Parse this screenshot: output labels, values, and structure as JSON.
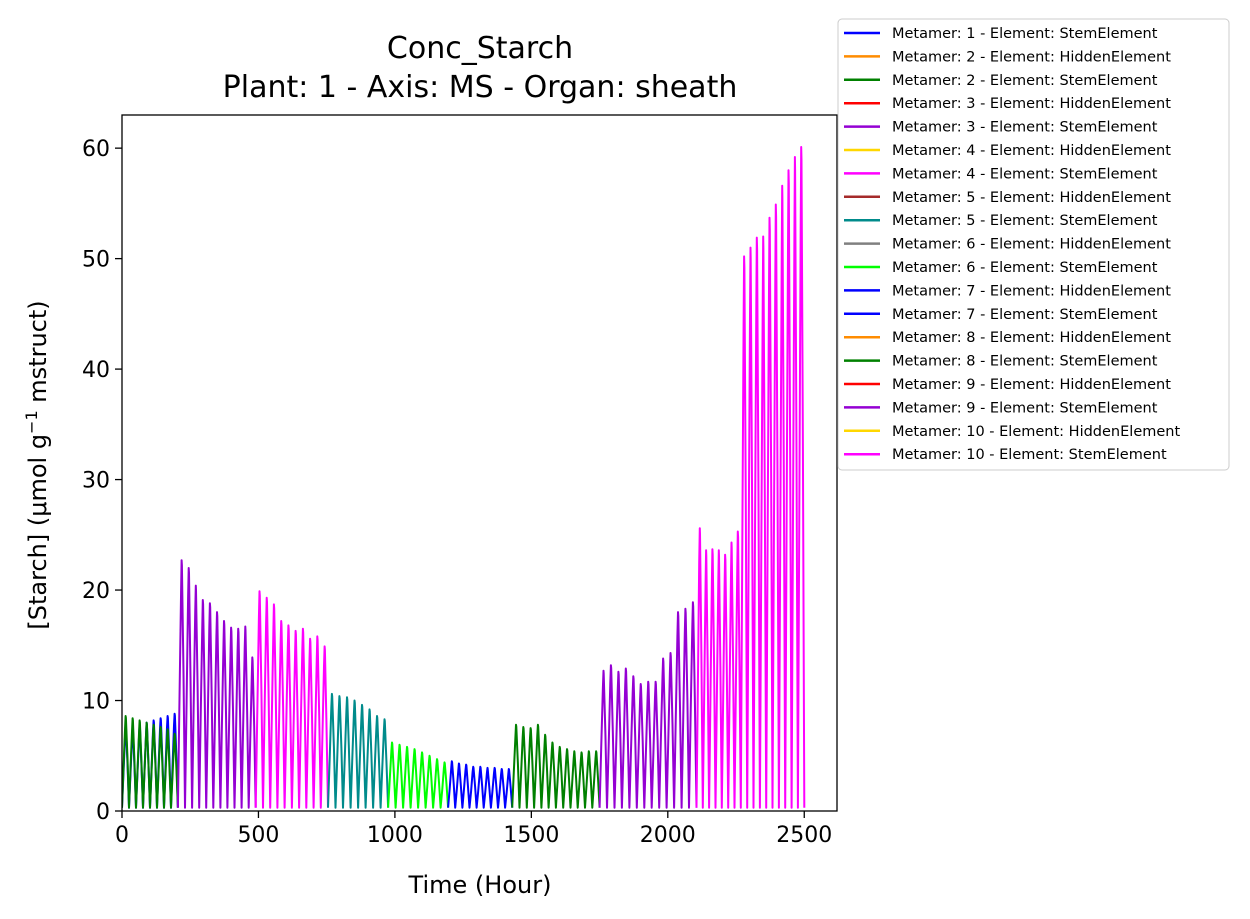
{
  "chart_data": {
    "type": "line",
    "title": "Conc_Starch",
    "subtitle": "Plant: 1 - Axis: MS - Organ: sheath",
    "xlabel": "Time (Hour)",
    "ylabel_prefix": "[Starch] (μmol g",
    "ylabel_sup": "−1",
    "ylabel_suffix": " mstruct)",
    "xlim": [
      0,
      2620
    ],
    "ylim": [
      0,
      63
    ],
    "xticks": [
      0,
      500,
      1000,
      1500,
      2000,
      2500
    ],
    "yticks": [
      0,
      10,
      20,
      30,
      40,
      50,
      60
    ],
    "legend_position": "outside-top-right",
    "grid": false,
    "series": [
      {
        "name": "Metamer: 1 - Element: StemElement",
        "color": "#0000ff",
        "t0": 0,
        "t1": 205,
        "peaks": [
          7.8,
          7.6,
          7.8,
          8.0,
          8.2,
          8.4,
          8.6,
          8.8
        ]
      },
      {
        "name": "Metamer: 2 - Element: HiddenElement",
        "color": "#ff8c00",
        "t0": 0,
        "t1": 0,
        "peaks": []
      },
      {
        "name": "Metamer: 2 - Element: StemElement",
        "color": "#008000",
        "t0": 0,
        "t1": 205,
        "peaks": [
          8.6,
          8.4,
          8.2,
          8.0,
          7.8,
          7.6,
          7.4,
          7.0
        ]
      },
      {
        "name": "Metamer: 3 - Element: HiddenElement",
        "color": "#ff0000",
        "t0": 0,
        "t1": 0,
        "peaks": []
      },
      {
        "name": "Metamer: 3 - Element: StemElement",
        "color": "#9400d3",
        "t0": 205,
        "t1": 490,
        "peaks": [
          22.7,
          22.0,
          20.4,
          19.1,
          18.8,
          18.0,
          17.2,
          16.6,
          16.5,
          16.7,
          13.9
        ]
      },
      {
        "name": "Metamer: 4 - Element: HiddenElement",
        "color": "#ffd700",
        "t0": 0,
        "t1": 0,
        "peaks": []
      },
      {
        "name": "Metamer: 4 - Element: StemElement",
        "color": "#ff00ff",
        "t0": 490,
        "t1": 755,
        "peaks": [
          19.9,
          19.3,
          18.7,
          17.2,
          16.8,
          16.3,
          16.5,
          15.6,
          15.8,
          14.9
        ]
      },
      {
        "name": "Metamer: 5 - Element: HiddenElement",
        "color": "#a52a2a",
        "t0": 0,
        "t1": 0,
        "peaks": []
      },
      {
        "name": "Metamer: 5 - Element: StemElement",
        "color": "#008b8b",
        "t0": 755,
        "t1": 975,
        "peaks": [
          10.6,
          10.4,
          10.3,
          10.0,
          9.6,
          9.2,
          8.6,
          8.3
        ]
      },
      {
        "name": "Metamer: 6 - Element: HiddenElement",
        "color": "#808080",
        "t0": 0,
        "t1": 0,
        "peaks": []
      },
      {
        "name": "Metamer: 6 - Element: StemElement",
        "color": "#00ff00",
        "t0": 975,
        "t1": 1195,
        "peaks": [
          6.2,
          6.0,
          5.8,
          5.6,
          5.3,
          5.0,
          4.7,
          4.4
        ]
      },
      {
        "name": "Metamer: 7 - Element: HiddenElement",
        "color": "#0000ff",
        "t0": 0,
        "t1": 0,
        "peaks": []
      },
      {
        "name": "Metamer: 7 - Element: StemElement",
        "color": "#0000ff",
        "t0": 1195,
        "t1": 1430,
        "peaks": [
          4.5,
          4.3,
          4.2,
          4.0,
          4.0,
          3.9,
          3.9,
          3.8,
          3.8
        ]
      },
      {
        "name": "Metamer: 8 - Element: HiddenElement",
        "color": "#ff8c00",
        "t0": 0,
        "t1": 0,
        "peaks": []
      },
      {
        "name": "Metamer: 8 - Element: StemElement",
        "color": "#008000",
        "t0": 1430,
        "t1": 1750,
        "peaks": [
          7.8,
          7.6,
          7.5,
          7.8,
          6.9,
          6.2,
          5.8,
          5.6,
          5.4,
          5.3,
          5.4,
          5.4
        ]
      },
      {
        "name": "Metamer: 9 - Element: HiddenElement",
        "color": "#ff0000",
        "t0": 0,
        "t1": 0,
        "peaks": []
      },
      {
        "name": "Metamer: 9 - Element: StemElement",
        "color": "#9400d3",
        "t0": 1750,
        "t1": 2105,
        "peaks": [
          12.7,
          13.2,
          12.6,
          12.9,
          12.2,
          11.5,
          11.7,
          11.7,
          13.8,
          14.3,
          18.0,
          18.3,
          18.9
        ]
      },
      {
        "name": "Metamer: 10 - Element: HiddenElement",
        "color": "#ffd700",
        "t0": 0,
        "t1": 0,
        "peaks": []
      },
      {
        "name": "Metamer: 10 - Element: StemElement",
        "color": "#ff00ff",
        "t0": 2105,
        "t1": 2500,
        "peaks": [
          25.6,
          23.6,
          23.7,
          23.6,
          23.2,
          24.3,
          25.3,
          50.2,
          51.0,
          51.9,
          52.0,
          53.7,
          54.9,
          56.6,
          58.0,
          59.2,
          60.1
        ]
      }
    ]
  }
}
